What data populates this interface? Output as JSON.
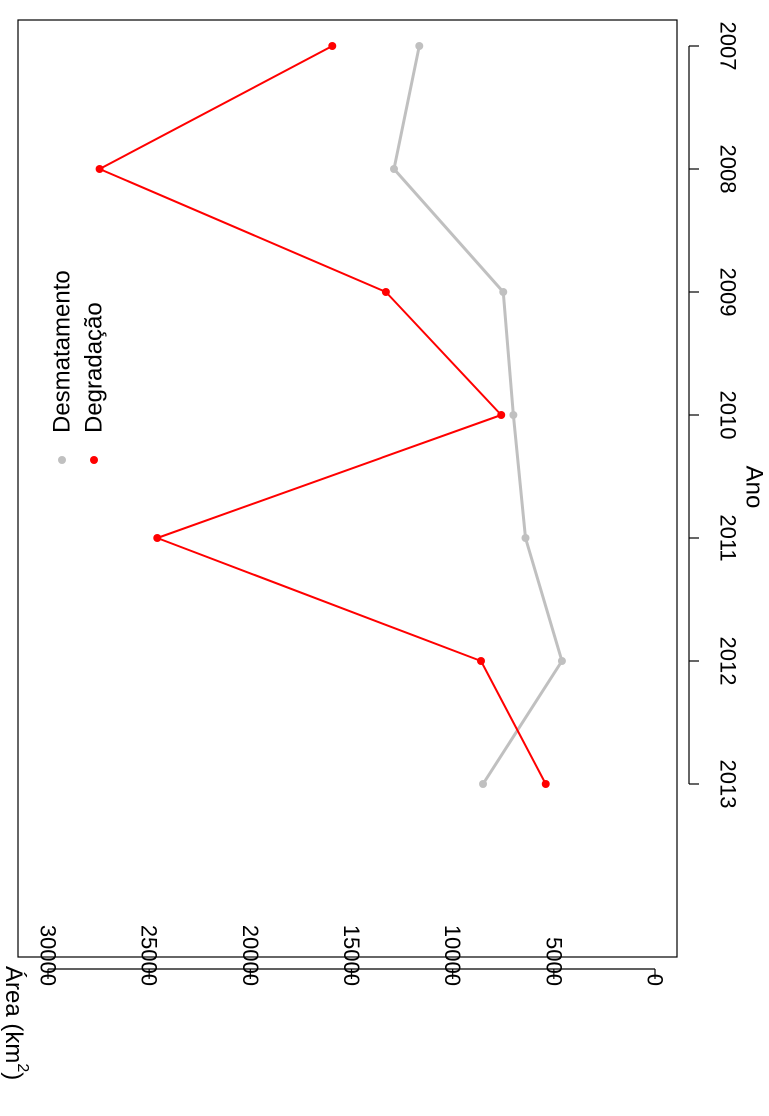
{
  "chart_data": {
    "type": "line",
    "orientation": "rotated-90-clockwise",
    "xlabel": "Ano",
    "ylabel": "Área (km²)",
    "ylabel_base": "Área  (km",
    "ylabel_sup": "2",
    "ylabel_close": ")",
    "x": [
      "2007",
      "2008",
      "2009",
      "2010",
      "2011",
      "2012",
      "2013"
    ],
    "x_tick_labels": [
      "2007",
      "2008",
      "2009",
      "2010",
      "2011",
      "2012",
      "2013"
    ],
    "y_ticks": [
      0,
      5000,
      10000,
      15000,
      20000,
      25000,
      30000
    ],
    "y_tick_labels": [
      "0",
      "5000",
      "10000",
      "15000",
      "20000",
      "25000",
      "30000"
    ],
    "ylim": [
      0,
      33000
    ],
    "grid": false,
    "legend_position": "top-left",
    "series": [
      {
        "name": "Desmatamento",
        "color": "#c0c0c0",
        "values": [
          11650,
          12900,
          7500,
          7000,
          6400,
          4600,
          8500
        ]
      },
      {
        "name": "Degradação",
        "color": "#ff0000",
        "values": [
          15950,
          27450,
          13300,
          7600,
          24600,
          8600,
          5400
        ]
      }
    ]
  }
}
